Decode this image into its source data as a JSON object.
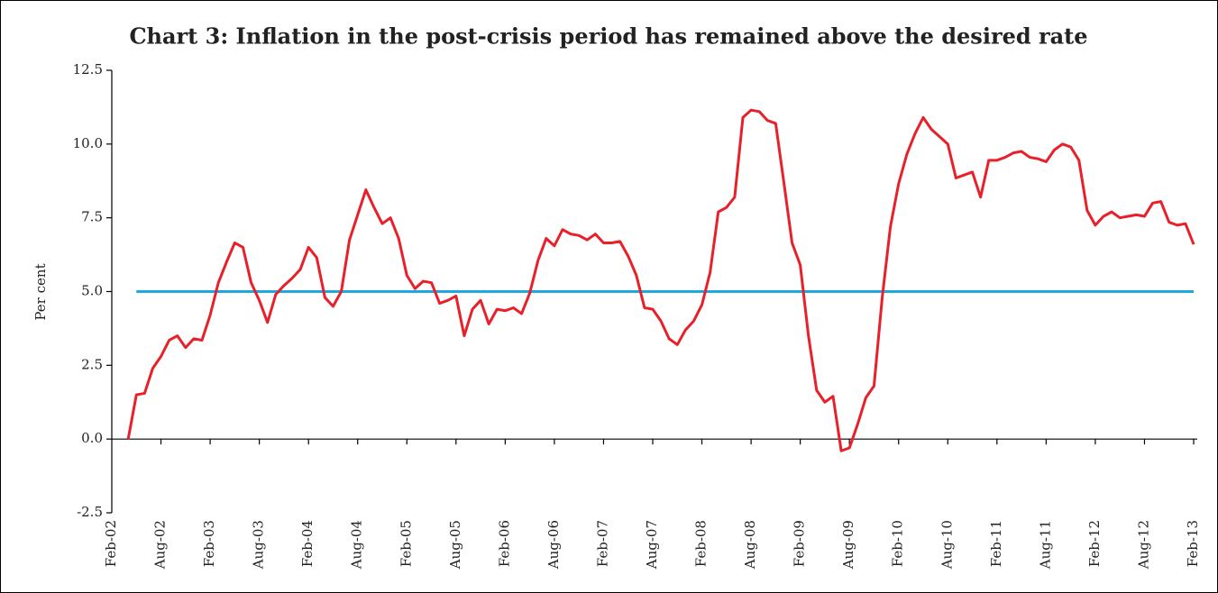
{
  "chart_data": {
    "type": "line",
    "title": "Chart 3: Inflation in the post-crisis period has remained above the desired rate",
    "y_label": "Per cent",
    "categories": [
      "Feb-02",
      null,
      null,
      null,
      null,
      null,
      "Aug-02",
      null,
      null,
      null,
      null,
      null,
      "Feb-03",
      null,
      null,
      null,
      null,
      null,
      "Aug-03",
      null,
      null,
      null,
      null,
      null,
      "Feb-04",
      null,
      null,
      null,
      null,
      null,
      "Aug-04",
      null,
      null,
      null,
      null,
      null,
      "Feb-05",
      null,
      null,
      null,
      null,
      null,
      "Aug-05",
      null,
      null,
      null,
      null,
      null,
      "Feb-06",
      null,
      null,
      null,
      null,
      null,
      "Aug-06",
      null,
      null,
      null,
      null,
      null,
      "Feb-07",
      null,
      null,
      null,
      null,
      null,
      "Aug-07",
      null,
      null,
      null,
      null,
      null,
      "Feb-08",
      null,
      null,
      null,
      null,
      null,
      "Aug-08",
      null,
      null,
      null,
      null,
      null,
      "Feb-09",
      null,
      null,
      null,
      null,
      null,
      "Aug-09",
      null,
      null,
      null,
      null,
      null,
      "Feb-10",
      null,
      null,
      null,
      null,
      null,
      "Aug-10",
      null,
      null,
      null,
      null,
      null,
      "Feb-11",
      null,
      null,
      null,
      null,
      null,
      "Aug-11",
      null,
      null,
      null,
      null,
      null,
      "Feb-12",
      null,
      null,
      null,
      null,
      null,
      "Aug-12",
      null,
      null,
      null,
      null,
      null,
      "Feb-13"
    ],
    "series": [
      {
        "color": "#e8202a",
        "values": [
          null,
          null,
          0,
          1.5,
          1.55,
          2.4,
          2.8,
          3.35,
          3.5,
          3.1,
          3.4,
          3.35,
          4.2,
          5.3,
          6.0,
          6.65,
          6.5,
          5.3,
          4.7,
          3.95,
          4.9,
          5.2,
          5.45,
          5.75,
          6.5,
          6.15,
          4.8,
          4.5,
          5.0,
          6.75,
          7.6,
          8.45,
          7.85,
          7.3,
          7.5,
          6.8,
          5.55,
          5.1,
          5.35,
          5.3,
          4.6,
          4.7,
          4.85,
          3.5,
          4.4,
          4.7,
          3.9,
          4.4,
          4.35,
          4.45,
          4.25,
          4.95,
          6.05,
          6.8,
          6.55,
          7.1,
          6.95,
          6.9,
          6.75,
          6.95,
          6.65,
          6.65,
          6.7,
          6.2,
          5.55,
          4.45,
          4.4,
          4.0,
          3.4,
          3.2,
          3.7,
          4.0,
          4.55,
          5.65,
          7.7,
          7.85,
          8.2,
          10.9,
          11.15,
          11.1,
          10.8,
          10.7,
          8.7,
          6.65,
          5.9,
          3.5,
          1.65,
          1.25,
          1.45,
          -0.4,
          -0.3,
          0.5,
          1.4,
          1.8,
          4.8,
          7.2,
          8.65,
          9.65,
          10.35,
          10.9,
          10.5,
          10.25,
          10.0,
          8.85,
          8.95,
          9.05,
          8.2,
          9.45,
          9.45,
          9.55,
          9.7,
          9.75,
          9.55,
          9.5,
          9.4,
          9.8,
          10.0,
          9.9,
          9.45,
          7.75,
          7.25,
          7.55,
          7.7,
          7.5,
          7.55,
          7.6,
          7.55,
          8.0,
          8.05,
          7.35,
          7.25,
          7.3,
          6.6
        ]
      },
      {
        "color": "#1ea7e1",
        "values": [
          null,
          null,
          null,
          5,
          5,
          5,
          5,
          5,
          5,
          5,
          5,
          5,
          5,
          5,
          5,
          5,
          5,
          5,
          5,
          5,
          5,
          5,
          5,
          5,
          5,
          5,
          5,
          5,
          5,
          5,
          5,
          5,
          5,
          5,
          5,
          5,
          5,
          5,
          5,
          5,
          5,
          5,
          5,
          5,
          5,
          5,
          5,
          5,
          5,
          5,
          5,
          5,
          5,
          5,
          5,
          5,
          5,
          5,
          5,
          5,
          5,
          5,
          5,
          5,
          5,
          5,
          5,
          5,
          5,
          5,
          5,
          5,
          5,
          5,
          5,
          5,
          5,
          5,
          5,
          5,
          5,
          5,
          5,
          5,
          5,
          5,
          5,
          5,
          5,
          5,
          5,
          5,
          5,
          5,
          5,
          5,
          5,
          5,
          5,
          5,
          5,
          5,
          5,
          5,
          5,
          5,
          5,
          5,
          5,
          5,
          5,
          5,
          5,
          5,
          5,
          5,
          5,
          5,
          5,
          5,
          5,
          5,
          5,
          5,
          5,
          5,
          5,
          5,
          5,
          5,
          5,
          5,
          5
        ]
      }
    ],
    "ylim": [
      -2.5,
      12.5
    ],
    "yticks": [
      -2.5,
      {
        "value": 0,
        "label": "0.0"
      },
      2.5,
      {
        "value": 5,
        "label": "5.0"
      },
      7.5,
      {
        "value": 10,
        "label": "10.0"
      },
      12.5
    ],
    "grid": false
  }
}
